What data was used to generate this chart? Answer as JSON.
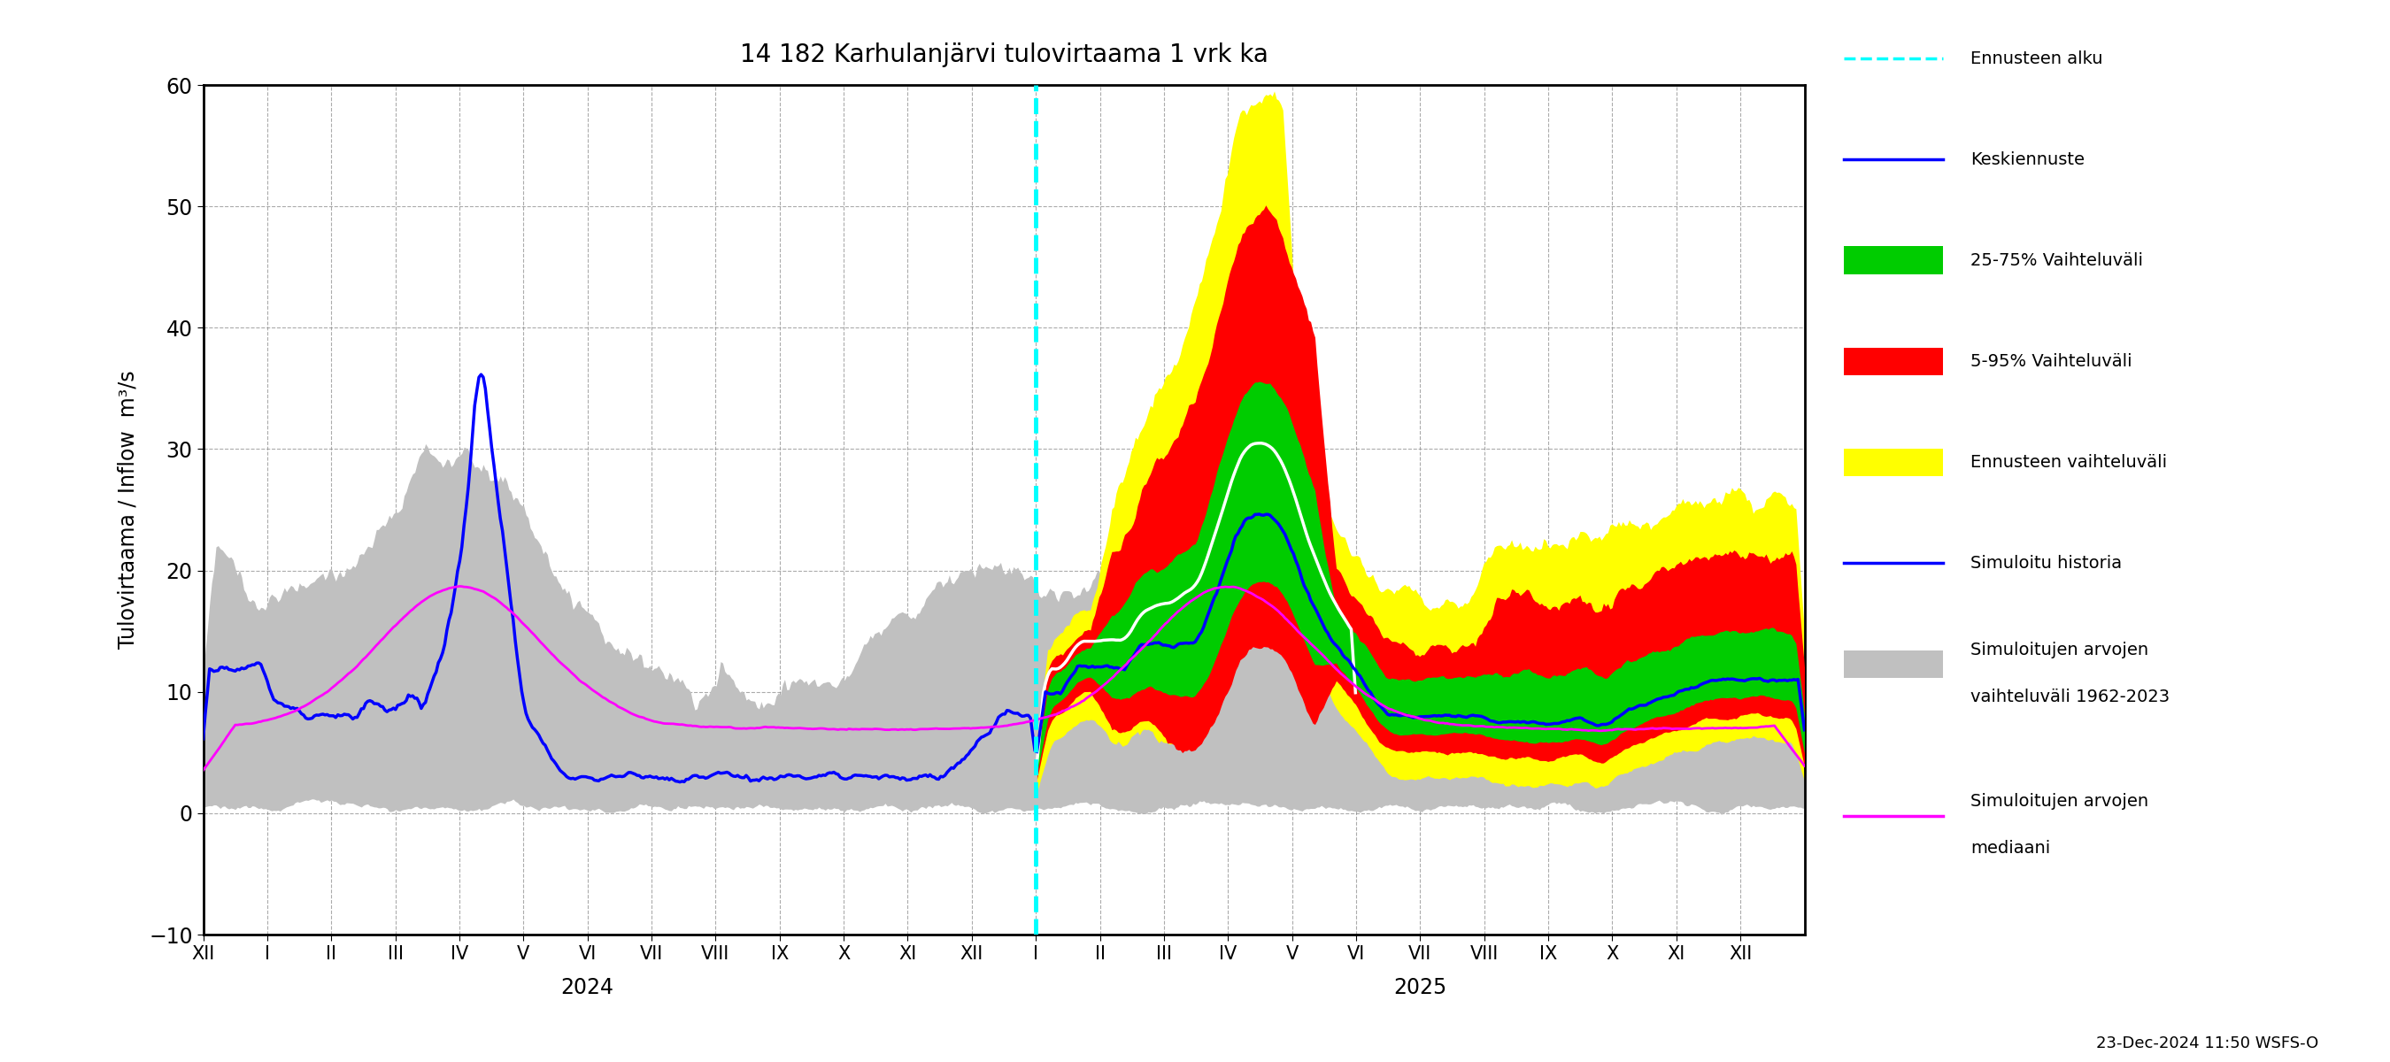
{
  "title": "14 182 Karhulanjärvi tulovirtaama 1 vrk ka",
  "ylabel": "Tulovirtaama / Inflow  m³/s",
  "ylim": [
    -10,
    60
  ],
  "yticks": [
    -10,
    0,
    10,
    20,
    30,
    40,
    50,
    60
  ],
  "footer": "23-Dec-2024 11:50 WSFS-O",
  "colors": {
    "gray_band": "#c0c0c0",
    "yellow_band": "#ffff00",
    "red_band": "#ff0000",
    "green_band": "#00cc00",
    "blue_line": "#0000ff",
    "magenta_line": "#ff00ff",
    "cyan_dashed": "#00ffff",
    "white_line": "#ffffff"
  },
  "month_labels": [
    "XII",
    "I",
    "II",
    "III",
    "IV",
    "V",
    "VI",
    "VII",
    "VIII",
    "IX",
    "X",
    "XI",
    "XII",
    "I",
    "II",
    "III",
    "IV",
    "V",
    "VI",
    "VII",
    "VIII",
    "IX",
    "X",
    "XI",
    "XII"
  ],
  "legend_labels": [
    "Ennusteen alku",
    "Keskiennuste",
    "25-75% Vaihteluväli",
    "5-95% Vaihteluväli",
    "Ennusteen vaihteluväli",
    "Simuloitu historia",
    "Simuloitujen arvojen\nvaihteluväli 1962-2023",
    "Simuloitujen arvojen\nmediaani"
  ]
}
